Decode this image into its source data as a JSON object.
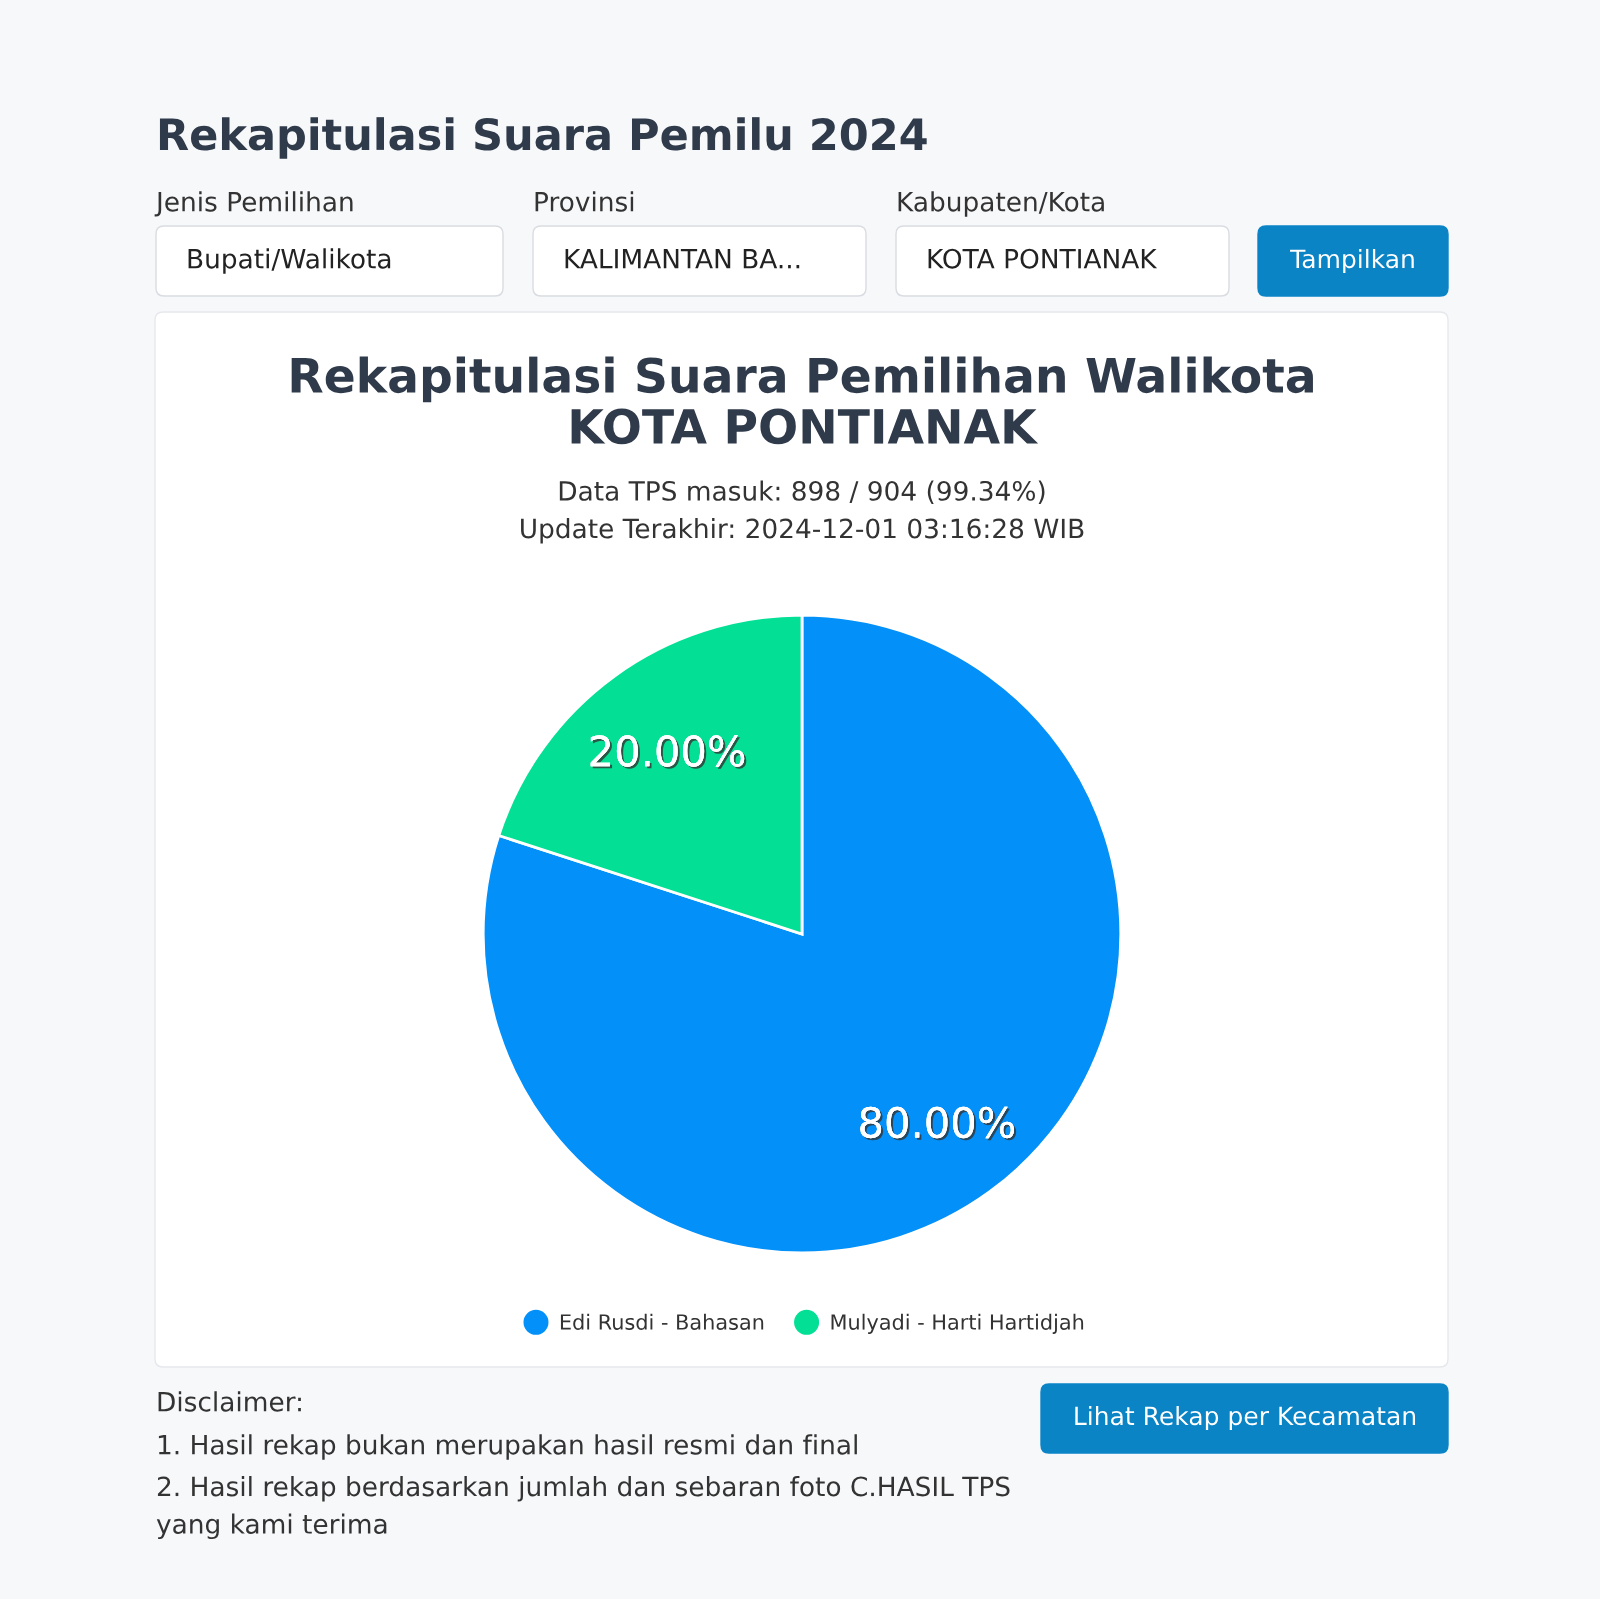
{
  "chart_data": {
    "type": "pie",
    "title": "Rekapitulasi Suara Pemilihan Walikota\nKOTA PONTIANAK",
    "subtitle": "Data TPS masuk: 898 / 904 (99.34%)\nUpdate Terakhir: 2024-12-01 03:16:28 WIB",
    "categories": [
      "Edi Rusdi - Bahasan",
      "Mulyadi - Harti Hartidjah"
    ],
    "values": [
      80,
      20
    ],
    "colors": [
      "#0390f9",
      "#03df95"
    ],
    "value_labels": [
      "80.00%",
      "20.00%"
    ],
    "legend": "bottom",
    "annotations": [
      "Rekapitulasi Suara Pemilu 2024",
      "Jenis Pemilihan",
      "Bupati/Walikota",
      "Provinsi",
      "KALIMANTAN BA...",
      "Kabupaten/Kota",
      "KOTA PONTIANAK",
      "Tampilkan",
      "Lihat Rekap per Kecamatan",
      "Disclaimer:",
      "1. Hasil rekap bukan merupakan hasil resmi dan final",
      "2. Hasil rekap berdasarkan jumlah dan sebaran foto C.HASIL TPS\nyang kami terima"
    ]
  }
}
